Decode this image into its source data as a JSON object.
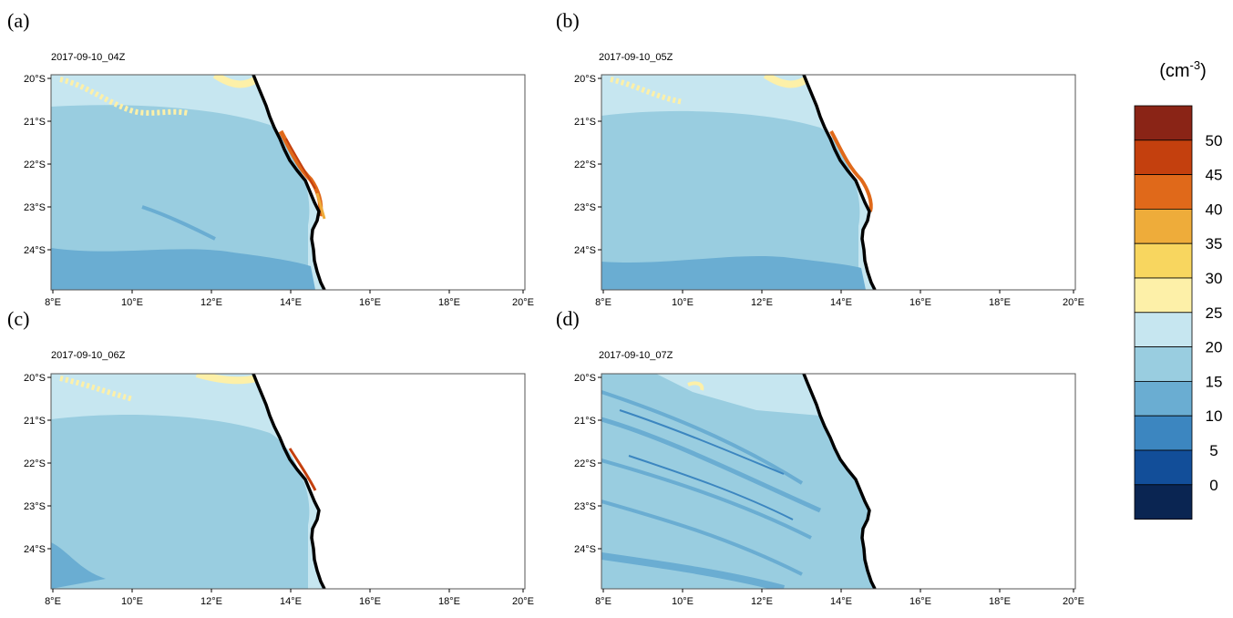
{
  "panels": [
    {
      "label": "(a)",
      "time": "2017-09-10_04Z"
    },
    {
      "label": "(b)",
      "time": "2017-09-10_05Z"
    },
    {
      "label": "(c)",
      "time": "2017-09-10_06Z"
    },
    {
      "label": "(d)",
      "time": "2017-09-10_07Z"
    }
  ],
  "lat_ticks": [
    "20°S",
    "21°S",
    "22°S",
    "23°S",
    "24°S"
  ],
  "lon_ticks": [
    "8°E",
    "10°E",
    "12°E",
    "14°E",
    "16°E",
    "18°E",
    "20°E"
  ],
  "colorbar": {
    "unit_base": "(cm",
    "unit_exp": "-3",
    "unit_close": ")",
    "tick_labels": [
      "50",
      "45",
      "40",
      "35",
      "30",
      "25",
      "20",
      "15",
      "10",
      "5",
      "0"
    ],
    "colors": [
      "#8a2416",
      "#c4400e",
      "#e0691a",
      "#eeac3a",
      "#f8d65f",
      "#fdf0a8",
      "#c6e6f0",
      "#99cde0",
      "#6aadd2",
      "#3c86c0",
      "#124e99",
      "#0a2552"
    ]
  }
}
